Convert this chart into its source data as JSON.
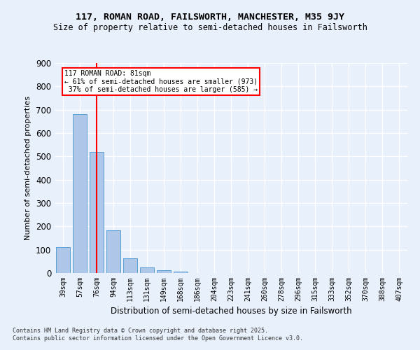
{
  "title1": "117, ROMAN ROAD, FAILSWORTH, MANCHESTER, M35 9JY",
  "title2": "Size of property relative to semi-detached houses in Failsworth",
  "xlabel": "Distribution of semi-detached houses by size in Failsworth",
  "ylabel": "Number of semi-detached properties",
  "categories": [
    "39sqm",
    "57sqm",
    "76sqm",
    "94sqm",
    "113sqm",
    "131sqm",
    "149sqm",
    "168sqm",
    "186sqm",
    "204sqm",
    "223sqm",
    "241sqm",
    "260sqm",
    "278sqm",
    "296sqm",
    "315sqm",
    "333sqm",
    "352sqm",
    "370sqm",
    "388sqm",
    "407sqm"
  ],
  "values": [
    110,
    680,
    520,
    183,
    63,
    25,
    12,
    6,
    0,
    0,
    0,
    0,
    0,
    0,
    0,
    0,
    0,
    0,
    0,
    0,
    0
  ],
  "bar_color": "#aec6e8",
  "bar_edge_color": "#5a9fd4",
  "vline_x_index": 2,
  "vline_color": "red",
  "annotation_text": "117 ROMAN ROAD: 81sqm\n← 61% of semi-detached houses are smaller (973)\n 37% of semi-detached houses are larger (585) →",
  "annotation_box_color": "white",
  "annotation_box_edge": "red",
  "ylim": [
    0,
    900
  ],
  "yticks": [
    0,
    100,
    200,
    300,
    400,
    500,
    600,
    700,
    800,
    900
  ],
  "background_color": "#e8f0fb",
  "grid_color": "#ffffff",
  "footer1": "Contains HM Land Registry data © Crown copyright and database right 2025.",
  "footer2": "Contains public sector information licensed under the Open Government Licence v3.0."
}
